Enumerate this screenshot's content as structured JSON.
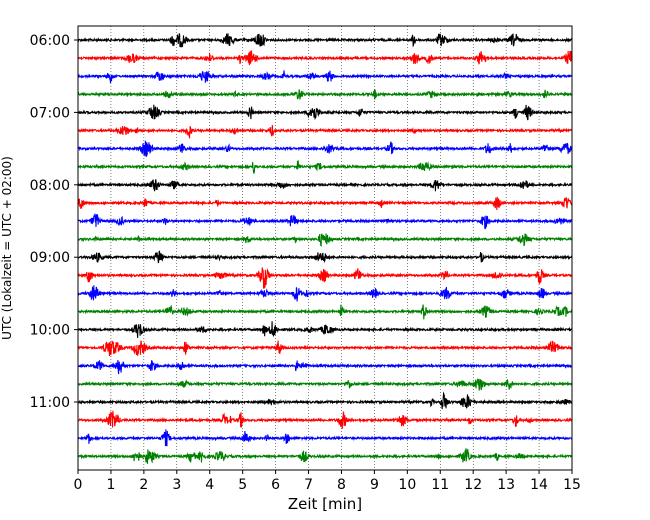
{
  "chart_data": {
    "type": "line",
    "title": "",
    "xlabel": "Zeit  [min]",
    "ylabel": "UTC (Lokalzeit = UTC + 02:00)",
    "xlim": [
      0,
      15
    ],
    "xticks": [
      0,
      1,
      2,
      3,
      4,
      5,
      6,
      7,
      8,
      9,
      10,
      11,
      12,
      13,
      14,
      15
    ],
    "x_grid": "dotted vertical lines at each minute",
    "ytick_labels": [
      "06:00",
      "07:00",
      "08:00",
      "09:00",
      "10:00",
      "11:00"
    ],
    "trace_interval_minutes": 15,
    "traces_per_label": 4,
    "colors": [
      "#000000",
      "#ff0000",
      "#0000ff",
      "#008000"
    ],
    "traces": [
      {
        "start": "06:00",
        "color": "#000000"
      },
      {
        "start": "06:15",
        "color": "#ff0000"
      },
      {
        "start": "06:30",
        "color": "#0000ff"
      },
      {
        "start": "06:45",
        "color": "#008000"
      },
      {
        "start": "07:00",
        "color": "#000000"
      },
      {
        "start": "07:15",
        "color": "#ff0000"
      },
      {
        "start": "07:30",
        "color": "#0000ff"
      },
      {
        "start": "07:45",
        "color": "#008000"
      },
      {
        "start": "08:00",
        "color": "#000000"
      },
      {
        "start": "08:15",
        "color": "#ff0000"
      },
      {
        "start": "08:30",
        "color": "#0000ff"
      },
      {
        "start": "08:45",
        "color": "#008000"
      },
      {
        "start": "09:00",
        "color": "#000000"
      },
      {
        "start": "09:15",
        "color": "#ff0000"
      },
      {
        "start": "09:30",
        "color": "#0000ff"
      },
      {
        "start": "09:45",
        "color": "#008000"
      },
      {
        "start": "10:00",
        "color": "#000000"
      },
      {
        "start": "10:15",
        "color": "#ff0000"
      },
      {
        "start": "10:30",
        "color": "#0000ff"
      },
      {
        "start": "10:45",
        "color": "#008000"
      },
      {
        "start": "11:00",
        "color": "#000000"
      },
      {
        "start": "11:15",
        "color": "#ff0000"
      },
      {
        "start": "11:30",
        "color": "#0000ff"
      },
      {
        "start": "11:45",
        "color": "#008000"
      }
    ]
  }
}
